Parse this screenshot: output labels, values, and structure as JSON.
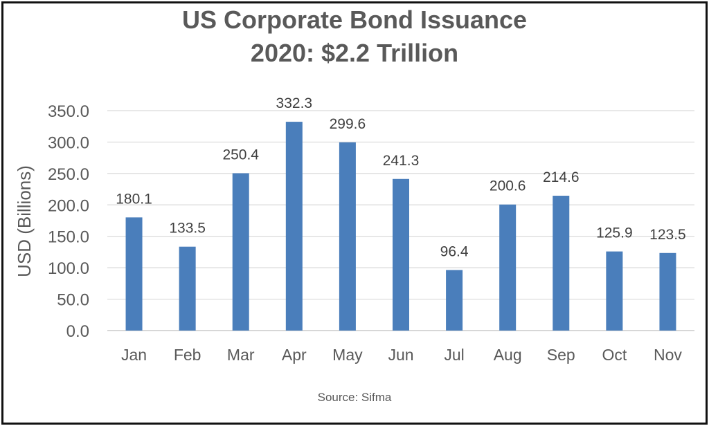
{
  "chart_data": {
    "type": "bar",
    "title": [
      "US Corporate Bond Issuance",
      "2020: $2.2 Trillion"
    ],
    "ylabel": "USD (Billions)",
    "xlabel": "",
    "categories": [
      "Jan",
      "Feb",
      "Mar",
      "Apr",
      "May",
      "Jun",
      "Jul",
      "Aug",
      "Sep",
      "Oct",
      "Nov"
    ],
    "values": [
      180.1,
      133.5,
      250.4,
      332.3,
      299.6,
      241.3,
      96.4,
      200.6,
      214.6,
      125.9,
      123.5
    ],
    "value_labels": [
      "180.1",
      "133.5",
      "250.4",
      "332.3",
      "299.6",
      "241.3",
      "96.4",
      "200.6",
      "214.6",
      "125.9",
      "123.5"
    ],
    "yticks": [
      "0.0",
      "50.0",
      "100.0",
      "150.0",
      "200.0",
      "250.0",
      "300.0",
      "350.0"
    ],
    "ylim": [
      0,
      350
    ],
    "grid": true,
    "legend": "none",
    "bar_color": "#4a7ebb",
    "source": "Source: Sifma"
  }
}
